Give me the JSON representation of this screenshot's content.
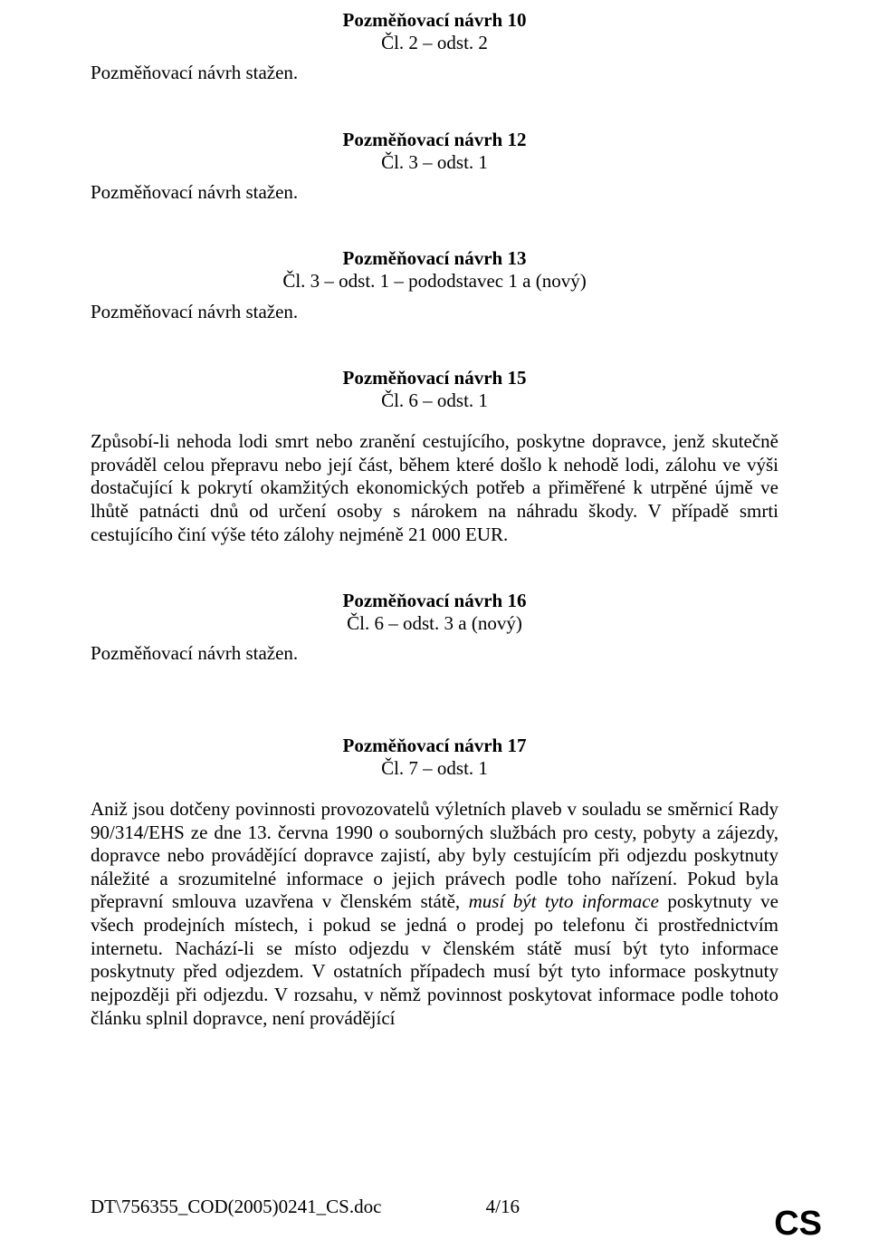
{
  "amend10": {
    "title": "Pozměňovací návrh 10",
    "ref": "Čl. 2 – odst. 2",
    "status": "Pozměňovací návrh stažen."
  },
  "amend12": {
    "title": "Pozměňovací návrh 12",
    "ref": "Čl. 3 – odst. 1",
    "status": "Pozměňovací návrh stažen."
  },
  "amend13": {
    "title": "Pozměňovací návrh 13",
    "ref": "Čl. 3 – odst. 1 – pododstavec 1 a (nový)",
    "status": "Pozměňovací návrh stažen."
  },
  "amend15": {
    "title": "Pozměňovací návrh 15",
    "ref": "Čl. 6 – odst. 1",
    "body": "Způsobí-li nehoda lodi smrt nebo zranění cestujícího, poskytne dopravce, jenž skutečně prováděl celou přepravu nebo její část, během které došlo k nehodě lodi, zálohu ve výši dostačující k pokrytí okamžitých ekonomických potřeb a přiměřené k utrpěné újmě ve lhůtě patnácti dnů od určení osoby s nárokem na náhradu škody. V případě smrti cestujícího činí výše této zálohy nejméně 21 000 EUR."
  },
  "amend16": {
    "title": "Pozměňovací návrh 16",
    "ref": "Čl. 6 – odst. 3 a (nový)",
    "status": "Pozměňovací návrh stažen."
  },
  "amend17": {
    "title": "Pozměňovací návrh 17",
    "ref": "Čl. 7 – odst. 1",
    "body_pre": "Aniž jsou dotčeny povinnosti provozovatelů výletních plaveb v souladu se směrnicí Rady 90/314/EHS ze dne 13. června 1990 o souborných službách pro cesty, pobyty a zájezdy, dopravce nebo provádějící dopravce zajistí, aby byly cestujícím při odjezdu poskytnuty náležité a srozumitelné informace o jejich právech podle toho nařízení. Pokud byla přepravní smlouva uzavřena v členském státě, ",
    "body_italic": "musí být tyto informace",
    "body_post": " poskytnuty ve všech prodejních místech, i pokud se jedná o prodej po telefonu či prostřednictvím internetu. Nachází-li se místo odjezdu v členském státě musí být tyto informace poskytnuty před odjezdem. V ostatních případech musí být tyto informace poskytnuty nejpozději při odjezdu. V rozsahu, v němž povinnost poskytovat informace podle tohoto článku splnil dopravce, není provádějící"
  },
  "footer": {
    "doc": "DT\\756355_COD(2005)0241_CS.doc",
    "page": "4/16",
    "lang": "CS"
  }
}
